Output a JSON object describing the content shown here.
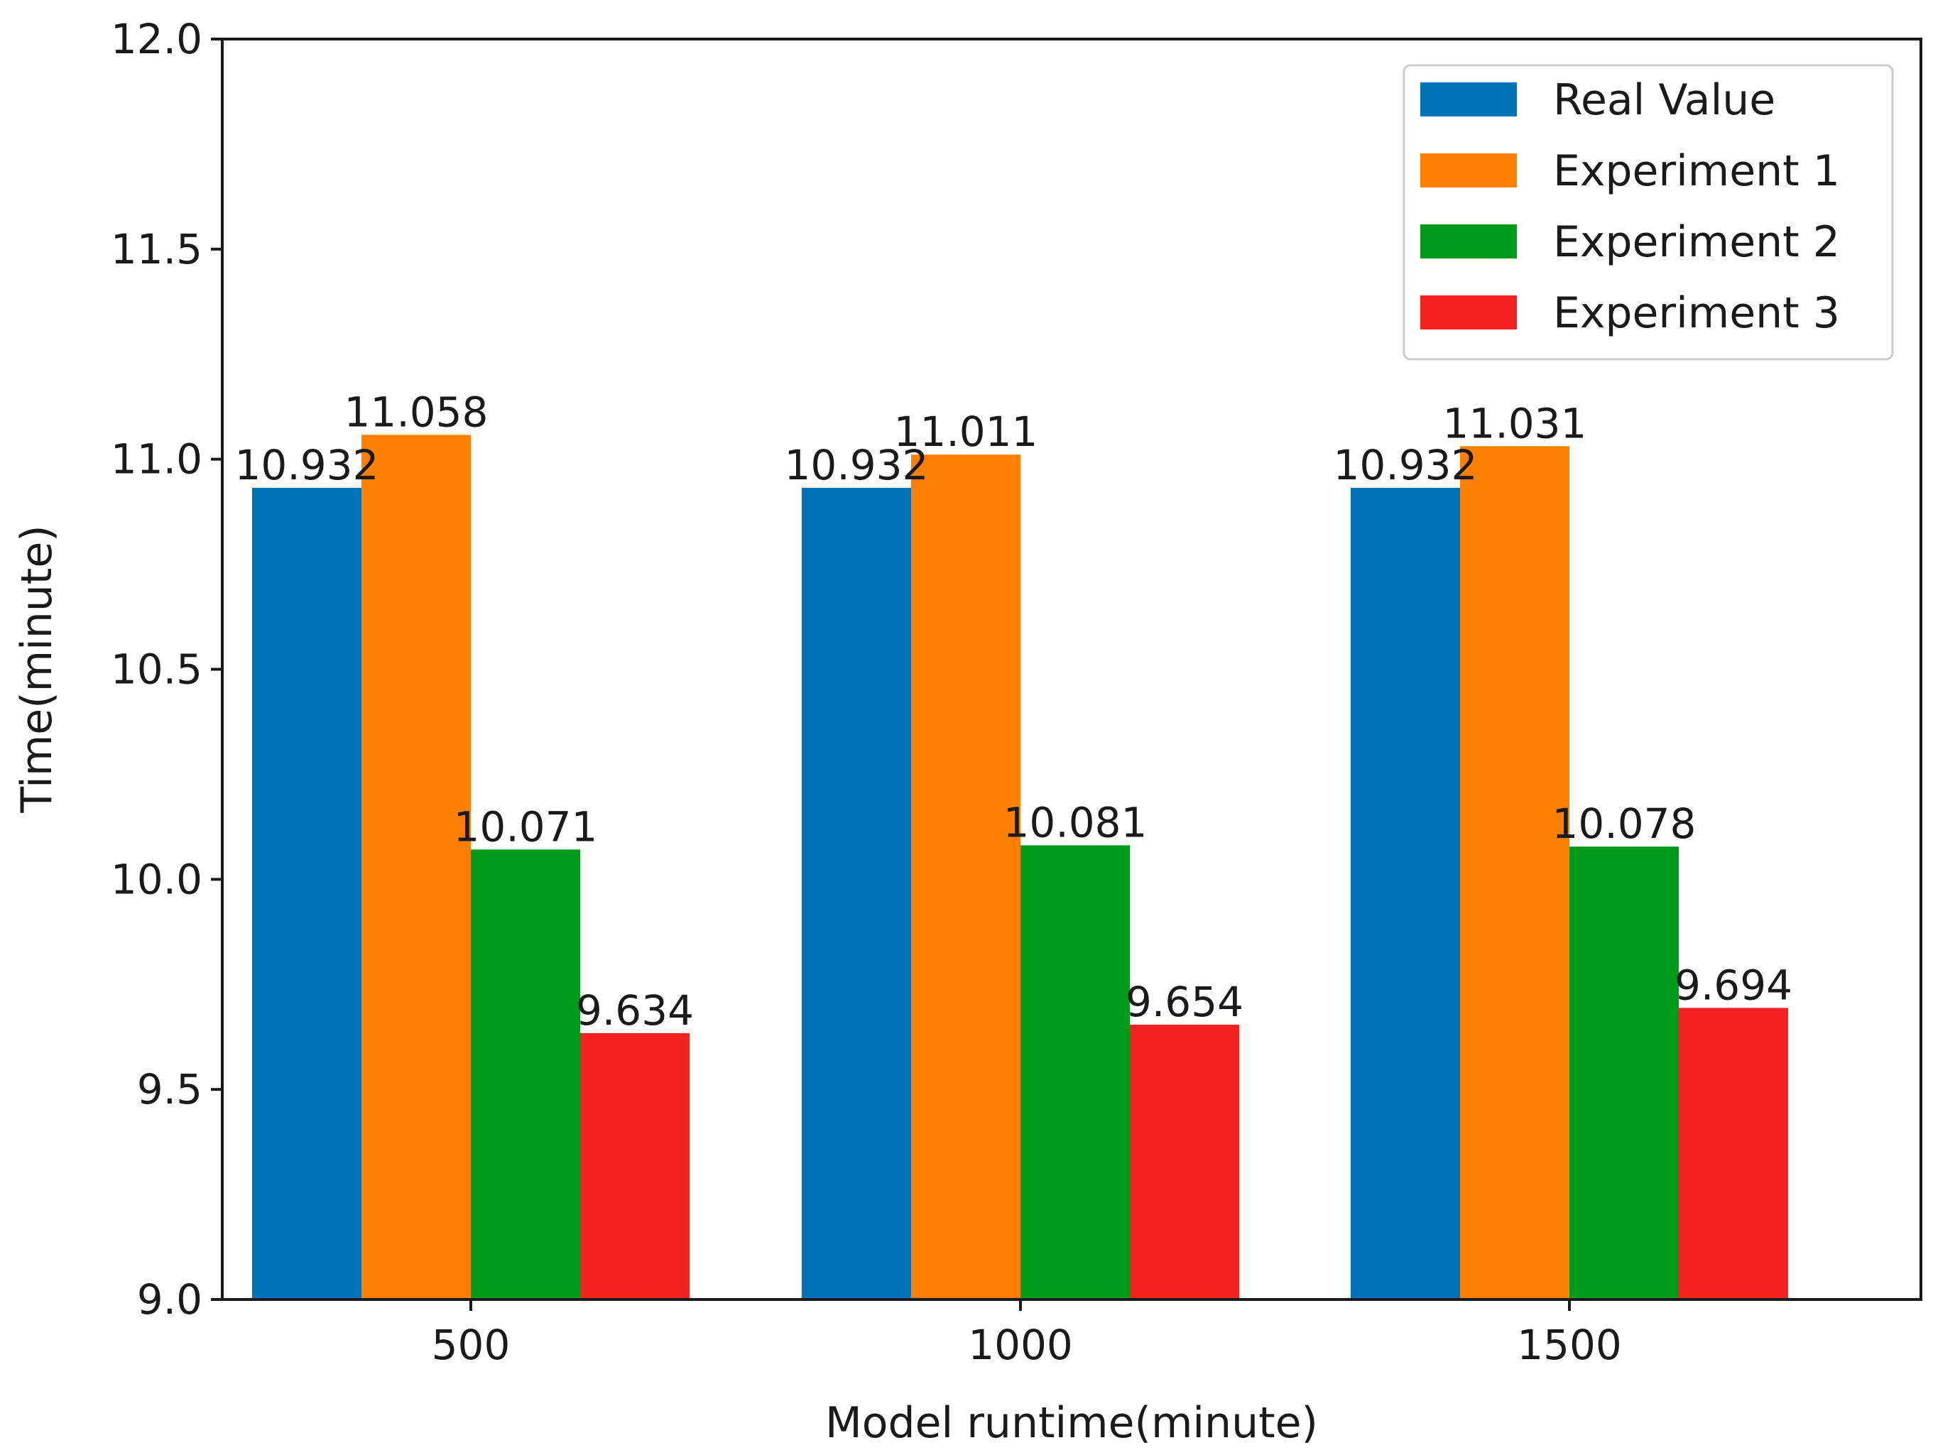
{
  "chart_data": {
    "type": "bar",
    "title": "",
    "xlabel": "Model runtime(minute)",
    "ylabel": "Time(minute)",
    "categories": [
      "500",
      "1000",
      "1500"
    ],
    "ylim": [
      9.0,
      12.0
    ],
    "yticks": [
      "9.0",
      "9.5",
      "10.0",
      "10.5",
      "11.0",
      "11.5",
      "12.0"
    ],
    "legend_position": "top-right",
    "grid": false,
    "series": [
      {
        "name": "Real Value",
        "color": "#0072B8",
        "values": [
          10.932,
          10.932,
          10.932
        ],
        "labels": [
          "10.932",
          "10.932",
          "10.932"
        ]
      },
      {
        "name": "Experiment 1",
        "color": "#FF7F00",
        "values": [
          11.058,
          11.011,
          11.031
        ],
        "labels": [
          "11.058",
          "11.011",
          "11.031"
        ]
      },
      {
        "name": "Experiment 2",
        "color": "#009B1A",
        "values": [
          10.071,
          10.081,
          10.078
        ],
        "labels": [
          "10.071",
          "10.081",
          "10.078"
        ]
      },
      {
        "name": "Experiment 3",
        "color": "#F52222",
        "values": [
          9.634,
          9.654,
          9.694
        ],
        "labels": [
          "9.634",
          "9.654",
          "9.694"
        ]
      }
    ]
  }
}
